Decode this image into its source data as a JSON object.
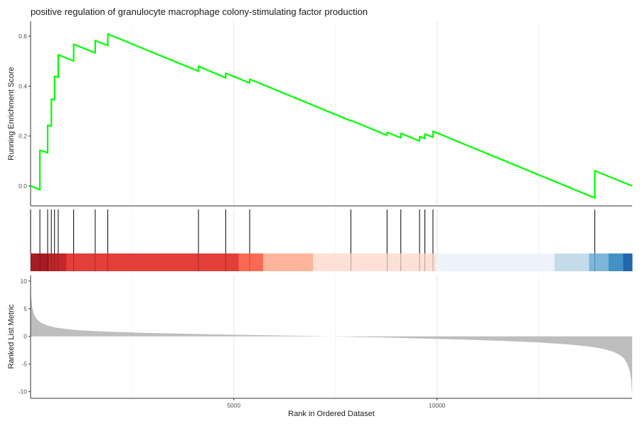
{
  "chart_data": {
    "type": "line",
    "title": "positive regulation of granulocyte macrophage colony-stimulating factor production",
    "line_color": "#00FF00",
    "grid": true,
    "x_axis": {
      "label": "Rank in Ordered Dataset",
      "range": [
        0,
        14800
      ],
      "ticks": [
        {
          "value": 5000,
          "label": "5000"
        },
        {
          "value": 10000,
          "label": "10000"
        }
      ]
    },
    "enrichment_panel": {
      "ylabel": "Running Enrichment Score",
      "ylim": [
        -0.08,
        0.66
      ],
      "ticks": [
        {
          "value": 0.0,
          "label": "0.0"
        },
        {
          "value": 0.2,
          "label": "0.2"
        },
        {
          "value": 0.4,
          "label": "0.4"
        },
        {
          "value": 0.6,
          "label": "0.6"
        }
      ],
      "points": [
        [
          0,
          0.0
        ],
        [
          230,
          -0.015
        ],
        [
          230,
          0.143
        ],
        [
          420,
          0.133
        ],
        [
          420,
          0.243
        ],
        [
          510,
          0.24
        ],
        [
          510,
          0.348
        ],
        [
          590,
          0.345
        ],
        [
          590,
          0.44
        ],
        [
          680,
          0.436
        ],
        [
          680,
          0.526
        ],
        [
          1060,
          0.501
        ],
        [
          1060,
          0.568
        ],
        [
          1590,
          0.533
        ],
        [
          1590,
          0.583
        ],
        [
          1900,
          0.563
        ],
        [
          1900,
          0.609
        ],
        [
          4130,
          0.46
        ],
        [
          4130,
          0.48
        ],
        [
          4800,
          0.433
        ],
        [
          4800,
          0.452
        ],
        [
          5390,
          0.413
        ],
        [
          5390,
          0.428
        ],
        [
          7880,
          0.261
        ],
        [
          7880,
          0.263
        ],
        [
          8770,
          0.203
        ],
        [
          8770,
          0.215
        ],
        [
          9110,
          0.193
        ],
        [
          9110,
          0.211
        ],
        [
          9570,
          0.18
        ],
        [
          9570,
          0.198
        ],
        [
          9700,
          0.19
        ],
        [
          9700,
          0.208
        ],
        [
          9900,
          0.195
        ],
        [
          9900,
          0.219
        ],
        [
          13880,
          -0.048
        ],
        [
          13880,
          0.061
        ],
        [
          14800,
          0.0
        ]
      ]
    },
    "gene_hits": [
      0,
      230,
      420,
      510,
      590,
      680,
      1060,
      1590,
      1900,
      4130,
      4800,
      5390,
      7880,
      8770,
      9110,
      9570,
      9700,
      9900,
      13880
    ],
    "color_bar": [
      {
        "from": 0,
        "to": 450,
        "color": "#A51D22"
      },
      {
        "from": 450,
        "to": 880,
        "color": "#C4262A"
      },
      {
        "from": 880,
        "to": 5120,
        "color": "#E23E3A"
      },
      {
        "from": 5120,
        "to": 5720,
        "color": "#FA6A52"
      },
      {
        "from": 5720,
        "to": 6950,
        "color": "#FDB49A"
      },
      {
        "from": 6950,
        "to": 9980,
        "color": "#FEE1D6"
      },
      {
        "from": 9980,
        "to": 12890,
        "color": "#EEF3FB"
      },
      {
        "from": 12890,
        "to": 13740,
        "color": "#C4DBEA"
      },
      {
        "from": 13740,
        "to": 14220,
        "color": "#7CB7DB"
      },
      {
        "from": 14220,
        "to": 14580,
        "color": "#4291C7"
      },
      {
        "from": 14580,
        "to": 14800,
        "color": "#2266AC"
      }
    ],
    "metric_panel": {
      "ylabel": "Ranked List Metric",
      "ylim": [
        -11.2,
        11.0
      ],
      "fill_color": "#BEBEBE",
      "ticks": [
        {
          "value": 10,
          "label": "10"
        },
        {
          "value": 5,
          "label": "5"
        },
        {
          "value": 0,
          "label": "0"
        },
        {
          "value": -5,
          "label": "-5"
        },
        {
          "value": -10,
          "label": "-10"
        }
      ],
      "points": [
        [
          0,
          8.6
        ],
        [
          15,
          7.0
        ],
        [
          40,
          5.3
        ],
        [
          80,
          4.0
        ],
        [
          150,
          3.1
        ],
        [
          250,
          2.5
        ],
        [
          400,
          2.0
        ],
        [
          600,
          1.6
        ],
        [
          900,
          1.3
        ],
        [
          1300,
          1.05
        ],
        [
          1900,
          0.85
        ],
        [
          2700,
          0.66
        ],
        [
          3700,
          0.48
        ],
        [
          4800,
          0.32
        ],
        [
          5900,
          0.18
        ],
        [
          6950,
          0.05
        ],
        [
          7700,
          -0.05
        ],
        [
          8600,
          -0.2
        ],
        [
          9600,
          -0.38
        ],
        [
          10600,
          -0.58
        ],
        [
          11600,
          -0.82
        ],
        [
          12500,
          -1.1
        ],
        [
          13200,
          -1.45
        ],
        [
          13700,
          -1.8
        ],
        [
          14050,
          -2.2
        ],
        [
          14300,
          -2.7
        ],
        [
          14480,
          -3.3
        ],
        [
          14600,
          -4.0
        ],
        [
          14680,
          -5.0
        ],
        [
          14740,
          -6.3
        ],
        [
          14775,
          -7.8
        ],
        [
          14800,
          -10.7
        ]
      ]
    }
  }
}
